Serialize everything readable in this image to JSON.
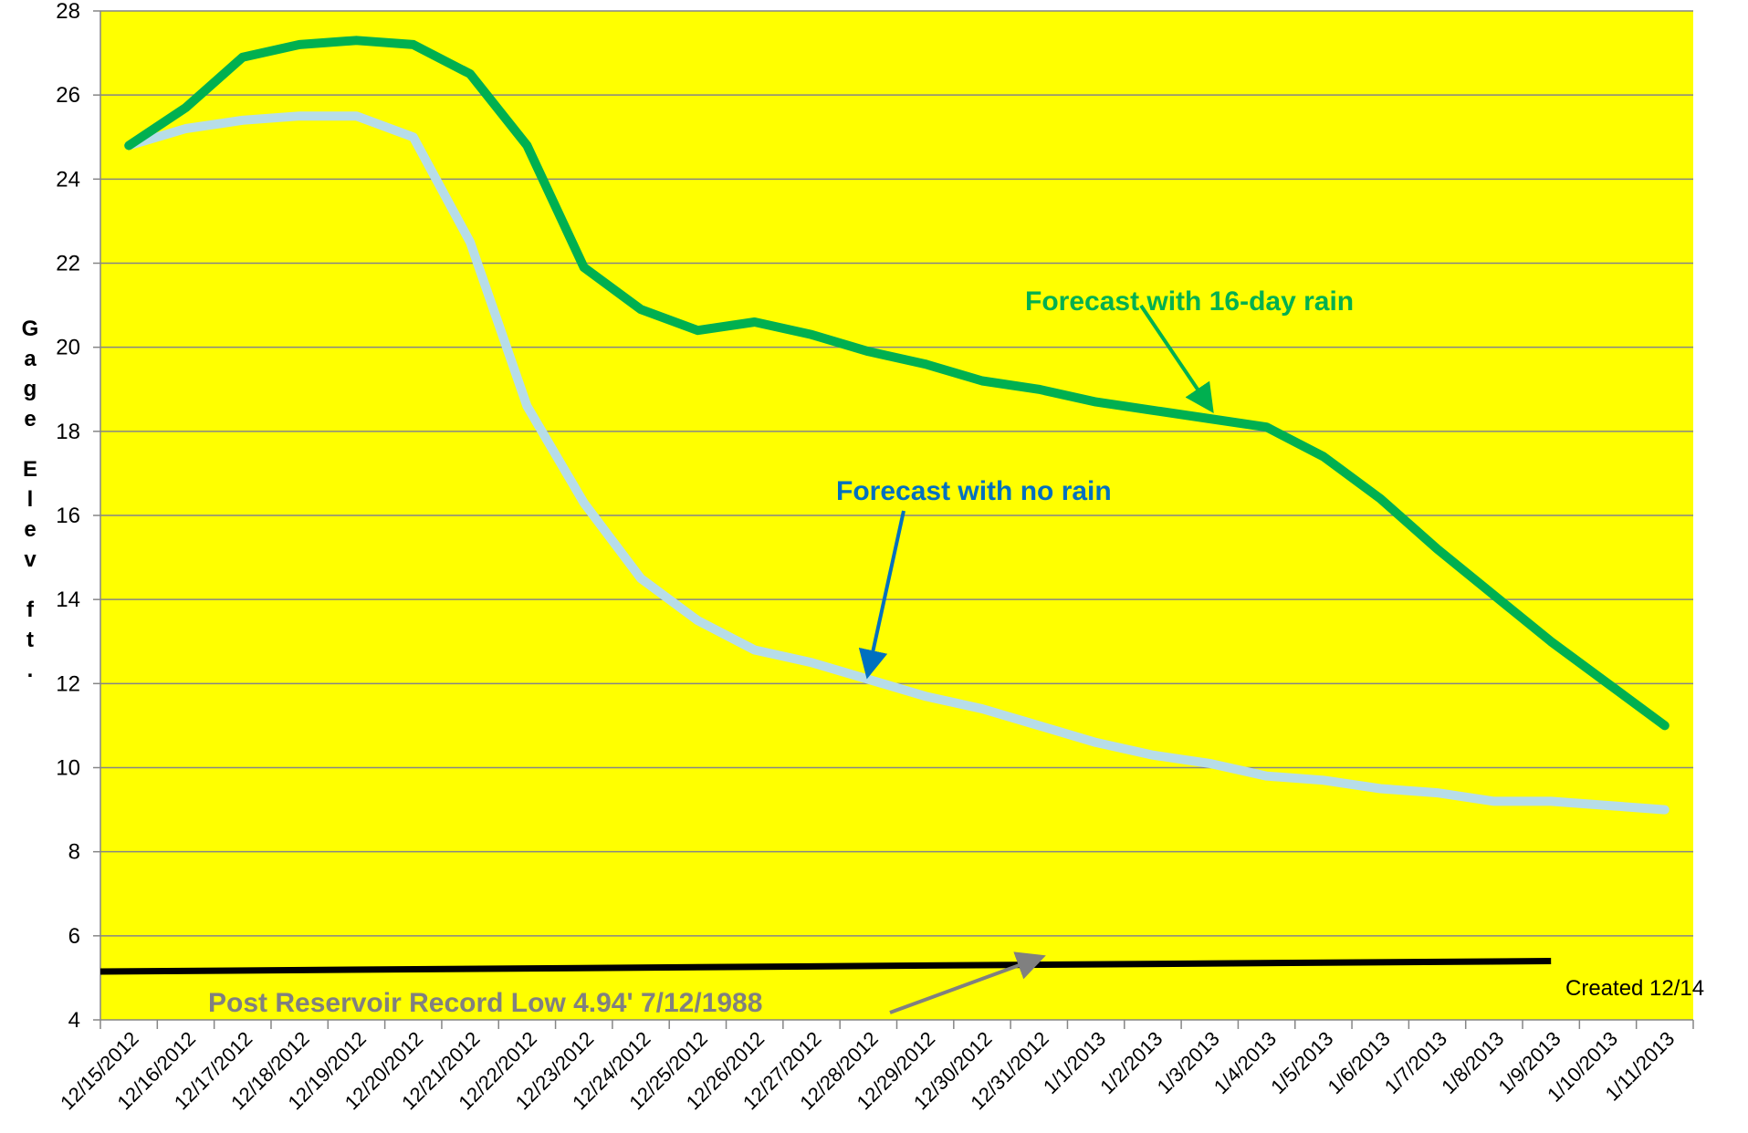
{
  "chart_data": {
    "type": "line",
    "title": "",
    "ylabel": "Gage Elev ft.",
    "xlabel": "",
    "ylim": [
      4,
      28
    ],
    "yticks": [
      4,
      6,
      8,
      10,
      12,
      14,
      16,
      18,
      20,
      22,
      24,
      26,
      28
    ],
    "grid": true,
    "background_color": "#FFFF00",
    "categories": [
      "12/15/2012",
      "12/16/2012",
      "12/17/2012",
      "12/18/2012",
      "12/19/2012",
      "12/20/2012",
      "12/21/2012",
      "12/22/2012",
      "12/23/2012",
      "12/24/2012",
      "12/25/2012",
      "12/26/2012",
      "12/27/2012",
      "12/28/2012",
      "12/29/2012",
      "12/30/2012",
      "12/31/2012",
      "1/1/2013",
      "1/2/2013",
      "1/3/2013",
      "1/4/2013",
      "1/5/2013",
      "1/6/2013",
      "1/7/2013",
      "1/8/2013",
      "1/9/2013",
      "1/10/2013",
      "1/11/2013"
    ],
    "series": [
      {
        "color": "#00B050",
        "values": [
          24.8,
          25.7,
          26.9,
          27.2,
          27.3,
          27.2,
          26.5,
          24.8,
          21.9,
          20.9,
          20.4,
          20.6,
          20.3,
          19.9,
          19.6,
          19.2,
          19.0,
          18.7,
          18.5,
          18.3,
          18.1,
          17.4,
          16.4,
          15.2,
          14.1,
          13.0,
          12.0,
          11.0
        ]
      },
      {
        "color": "#B7DDE8",
        "values": [
          24.8,
          25.2,
          25.4,
          25.5,
          25.5,
          25.0,
          22.5,
          18.6,
          16.3,
          14.5,
          13.5,
          12.8,
          12.5,
          12.1,
          11.7,
          11.4,
          11.0,
          10.6,
          10.3,
          10.1,
          9.8,
          9.7,
          9.5,
          9.4,
          9.2,
          9.2,
          9.1,
          9.0
        ]
      }
    ],
    "record_low_line": {
      "color": "#000000",
      "start_value": 5.15,
      "end_value": 5.4,
      "end_category": "1/9/2013"
    },
    "annotations": [
      {
        "text": "Forecast with 16-day rain",
        "color": "#00B050",
        "arrow_target": {
          "category": "1/3/2013",
          "value": 18.4
        }
      },
      {
        "text": "Forecast with no rain",
        "color": "#0070C0",
        "arrow_target": {
          "category": "12/28/2012",
          "value": 12.1
        }
      },
      {
        "text": "Post Reservoir Record Low 4.94' 7/12/1988",
        "color": "#808080",
        "arrow_target": {
          "category": "12/31/2012",
          "value": 5.3
        }
      }
    ],
    "footnote": "Created 12/14"
  }
}
